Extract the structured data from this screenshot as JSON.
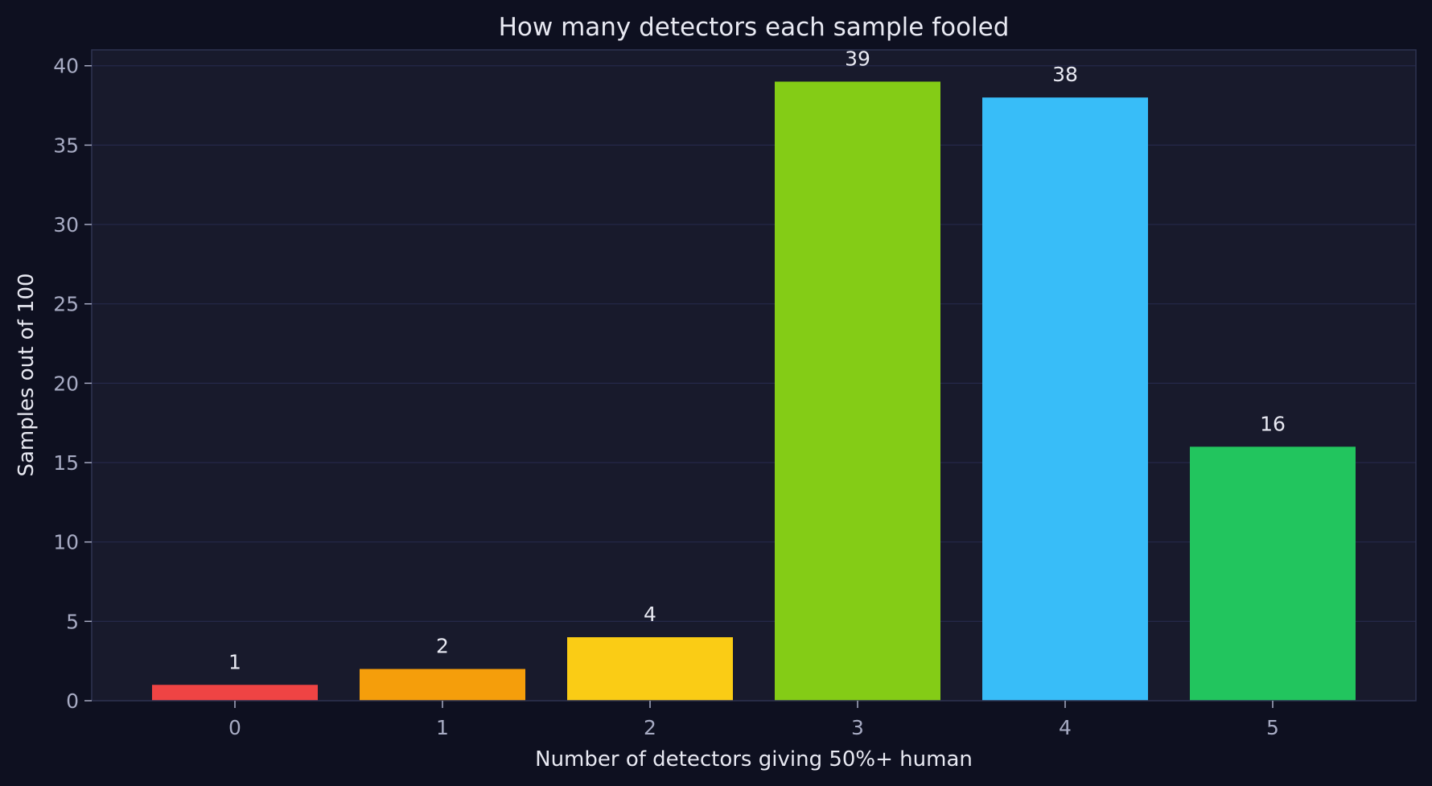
{
  "chart_data": {
    "type": "bar",
    "title": "How many detectors each sample fooled",
    "xlabel": "Number of detectors giving 50%+ human",
    "ylabel": "Samples out of 100",
    "categories": [
      "0",
      "1",
      "2",
      "3",
      "4",
      "5"
    ],
    "values": [
      1,
      2,
      4,
      39,
      38,
      16
    ],
    "data_labels": [
      "1",
      "2",
      "4",
      "39",
      "38",
      "16"
    ],
    "bar_colors": [
      "#ef4444",
      "#f59e0b",
      "#facc15",
      "#84cc16",
      "#38bdf8",
      "#22c55e"
    ],
    "ylim": [
      0,
      41
    ],
    "yticks": [
      0,
      5,
      10,
      15,
      20,
      25,
      30,
      35,
      40
    ],
    "ytick_labels": [
      "0",
      "5",
      "10",
      "15",
      "20",
      "25",
      "30",
      "35",
      "40"
    ],
    "grid": "horizontal",
    "legend": "none"
  },
  "colors": {
    "page_background": "#0e1020",
    "plot_background": "#181a2c",
    "frame": "#2e3250",
    "grid": "#25284a",
    "tick_label": "#a7abc3",
    "text": "#e8e9f2"
  }
}
